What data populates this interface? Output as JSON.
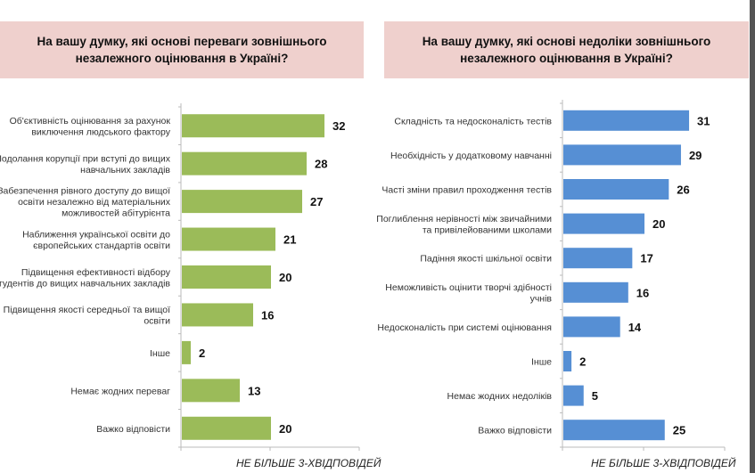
{
  "chart_data": [
    {
      "type": "bar",
      "orientation": "horizontal",
      "title": "На вашу думку, які основі переваги зовнішнього незалежного оцінювання в Україні?",
      "note": "НЕ БІЛЬШЕ 3-ХВІДПОВІДЕЙ",
      "categories": [
        [
          "Об'єктивність оцінювання за рахунок",
          "виключення людського фактору"
        ],
        [
          "Подолання корупції при вступі до вищих",
          "навчальних закладів"
        ],
        [
          "Забезпечення рівного доступу до вищої",
          "освіти незалежно від матеріальних",
          "можливостей абітурієнта"
        ],
        [
          "Наближення української освіти до",
          "європейських стандартів освіти"
        ],
        [
          "Підвищення ефективності відбору",
          "студентів до вищих навчальних закладів"
        ],
        [
          "Підвищення якості середньої та вищої",
          "освіти"
        ],
        [
          "Інше"
        ],
        [
          "Немає жодних переваг"
        ],
        [
          "Важко відповісти"
        ]
      ],
      "values": [
        32,
        28,
        27,
        21,
        20,
        16,
        2,
        13,
        20
      ],
      "xlim": [
        0,
        40
      ],
      "color": "#9bbb59"
    },
    {
      "type": "bar",
      "orientation": "horizontal",
      "title": "На вашу думку, які основі недоліки зовнішнього незалежного оцінювання в Україні?",
      "note": "НЕ БІЛЬШЕ 3-ХВІДПОВІДЕЙ",
      "categories": [
        [
          "Складність та недосконалість тестів"
        ],
        [
          "Необхідність у додатковому навчанні"
        ],
        [
          "Часті зміни правил проходження тестів"
        ],
        [
          "Поглиблення нерівності між звичайними",
          "та привілейованими школами"
        ],
        [
          "Падіння якості шкільної освіти"
        ],
        [
          "Неможливість оцінити творчі здібності",
          "учнів"
        ],
        [
          "Недосконалість при системі оцінювання"
        ],
        [
          "Інше"
        ],
        [
          "Немає жодних недоліків"
        ],
        [
          "Важко відповісти"
        ]
      ],
      "values": [
        31,
        29,
        26,
        20,
        17,
        16,
        14,
        2,
        5,
        25
      ],
      "xlim": [
        0,
        40
      ],
      "color": "#568fd4"
    }
  ]
}
